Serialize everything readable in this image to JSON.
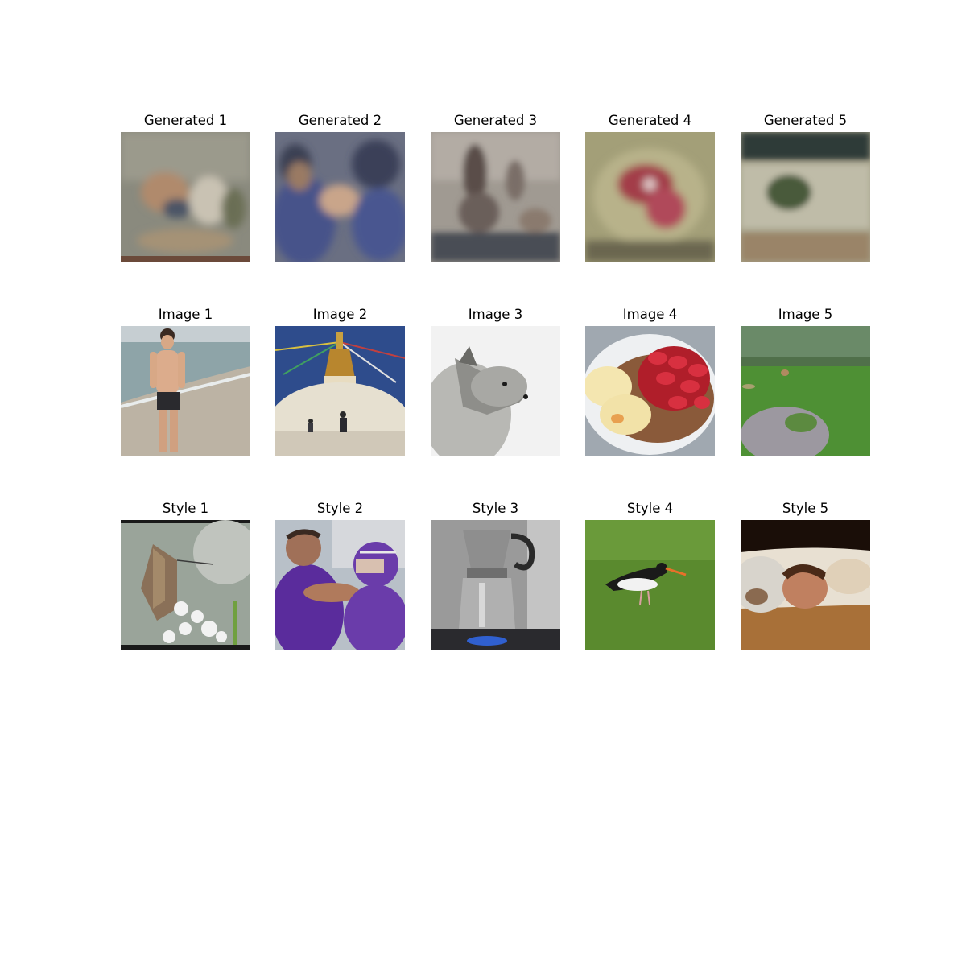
{
  "figure": {
    "rows": [
      {
        "name": "generated",
        "panels": [
          {
            "title": "Generated 1",
            "subject": "blurry-reconstruction"
          },
          {
            "title": "Generated 2",
            "subject": "blurry-two-figures"
          },
          {
            "title": "Generated 3",
            "subject": "blurry-figure-scene"
          },
          {
            "title": "Generated 4",
            "subject": "blurry-red-object"
          },
          {
            "title": "Generated 5",
            "subject": "blurry-landscape"
          }
        ]
      },
      {
        "name": "content",
        "panels": [
          {
            "title": "Image 1",
            "subject": "man-on-beach"
          },
          {
            "title": "Image 2",
            "subject": "stupa-with-prayer-flags"
          },
          {
            "title": "Image 3",
            "subject": "arctic-fox"
          },
          {
            "title": "Image 4",
            "subject": "ice-cream-with-strawberries"
          },
          {
            "title": "Image 5",
            "subject": "fox-on-lawn"
          }
        ]
      },
      {
        "name": "style",
        "panels": [
          {
            "title": "Style 1",
            "subject": "butterfly-on-flowers"
          },
          {
            "title": "Style 2",
            "subject": "coach-and-football-player"
          },
          {
            "title": "Style 3",
            "subject": "moka-pot-on-stove"
          },
          {
            "title": "Style 4",
            "subject": "oystercatcher-on-grass"
          },
          {
            "title": "Style 5",
            "subject": "man-lying-with-dog"
          }
        ]
      }
    ]
  }
}
